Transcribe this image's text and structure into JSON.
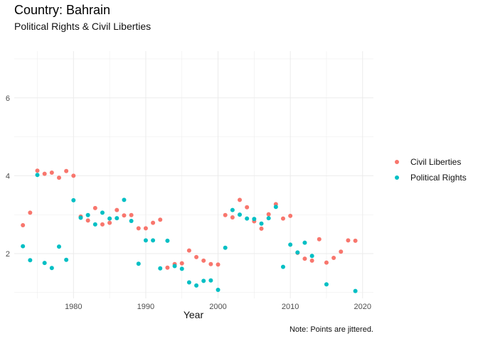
{
  "chart_data": {
    "type": "scatter",
    "title": "Country: Bahrain",
    "subtitle": "Political Rights & Civil Liberties",
    "xlabel": "Year",
    "ylabel": "",
    "caption": "Note: Points are jittered.",
    "xlim": [
      1971.8,
      2021.5
    ],
    "ylim": [
      0.85,
      7.2
    ],
    "xticks": [
      1980,
      1990,
      2000,
      2010,
      2020
    ],
    "yticks": [
      2,
      4,
      6
    ],
    "grid": true,
    "legend_position": "right",
    "series": [
      {
        "name": "Civil Liberties",
        "color": "#F8766D",
        "points": [
          [
            1973,
            2.73
          ],
          [
            1974,
            3.05
          ],
          [
            1975,
            4.13
          ],
          [
            1976,
            4.05
          ],
          [
            1977,
            4.08
          ],
          [
            1978,
            3.95
          ],
          [
            1979,
            4.12
          ],
          [
            1980,
            4.0
          ],
          [
            1981,
            2.95
          ],
          [
            1982,
            2.85
          ],
          [
            1983,
            3.17
          ],
          [
            1984,
            2.75
          ],
          [
            1985,
            2.79
          ],
          [
            1986,
            3.12
          ],
          [
            1987,
            2.98
          ],
          [
            1988,
            2.99
          ],
          [
            1989,
            2.65
          ],
          [
            1990,
            2.65
          ],
          [
            1991,
            2.79
          ],
          [
            1992,
            2.87
          ],
          [
            1993,
            1.64
          ],
          [
            1994,
            1.73
          ],
          [
            1995,
            1.75
          ],
          [
            1996,
            2.08
          ],
          [
            1997,
            1.91
          ],
          [
            1998,
            1.82
          ],
          [
            1999,
            1.73
          ],
          [
            2000,
            1.72
          ],
          [
            2001,
            2.99
          ],
          [
            2002,
            2.93
          ],
          [
            2003,
            3.38
          ],
          [
            2004,
            3.19
          ],
          [
            2005,
            2.83
          ],
          [
            2006,
            2.64
          ],
          [
            2007,
            3.01
          ],
          [
            2008,
            3.27
          ],
          [
            2009,
            2.9
          ],
          [
            2010,
            2.97
          ],
          [
            2011,
            2.02
          ],
          [
            2012,
            1.87
          ],
          [
            2013,
            1.82
          ],
          [
            2014,
            2.37
          ],
          [
            2015,
            1.77
          ],
          [
            2016,
            1.89
          ],
          [
            2017,
            2.05
          ],
          [
            2018,
            2.34
          ],
          [
            2019,
            2.33
          ]
        ]
      },
      {
        "name": "Political Rights",
        "color": "#00BFC4",
        "points": [
          [
            1973,
            2.19
          ],
          [
            1974,
            1.83
          ],
          [
            1975,
            4.02
          ],
          [
            1976,
            1.76
          ],
          [
            1977,
            1.63
          ],
          [
            1978,
            2.18
          ],
          [
            1979,
            1.84
          ],
          [
            1980,
            3.37
          ],
          [
            1981,
            2.92
          ],
          [
            1982,
            2.99
          ],
          [
            1983,
            2.75
          ],
          [
            1984,
            3.05
          ],
          [
            1985,
            2.9
          ],
          [
            1986,
            2.91
          ],
          [
            1987,
            3.38
          ],
          [
            1988,
            2.84
          ],
          [
            1989,
            1.74
          ],
          [
            1990,
            2.34
          ],
          [
            1991,
            2.34
          ],
          [
            1992,
            1.62
          ],
          [
            1993,
            2.33
          ],
          [
            1994,
            1.68
          ],
          [
            1995,
            1.61
          ],
          [
            1996,
            1.26
          ],
          [
            1997,
            1.18
          ],
          [
            1998,
            1.3
          ],
          [
            1999,
            1.31
          ],
          [
            2000,
            1.07
          ],
          [
            2001,
            2.15
          ],
          [
            2002,
            3.12
          ],
          [
            2003,
            3.0
          ],
          [
            2004,
            2.9
          ],
          [
            2005,
            2.89
          ],
          [
            2006,
            2.77
          ],
          [
            2007,
            2.91
          ],
          [
            2008,
            3.2
          ],
          [
            2009,
            1.66
          ],
          [
            2010,
            2.23
          ],
          [
            2011,
            2.03
          ],
          [
            2012,
            2.28
          ],
          [
            2013,
            1.94
          ],
          [
            2015,
            1.21
          ],
          [
            2019,
            1.04
          ]
        ]
      }
    ]
  }
}
